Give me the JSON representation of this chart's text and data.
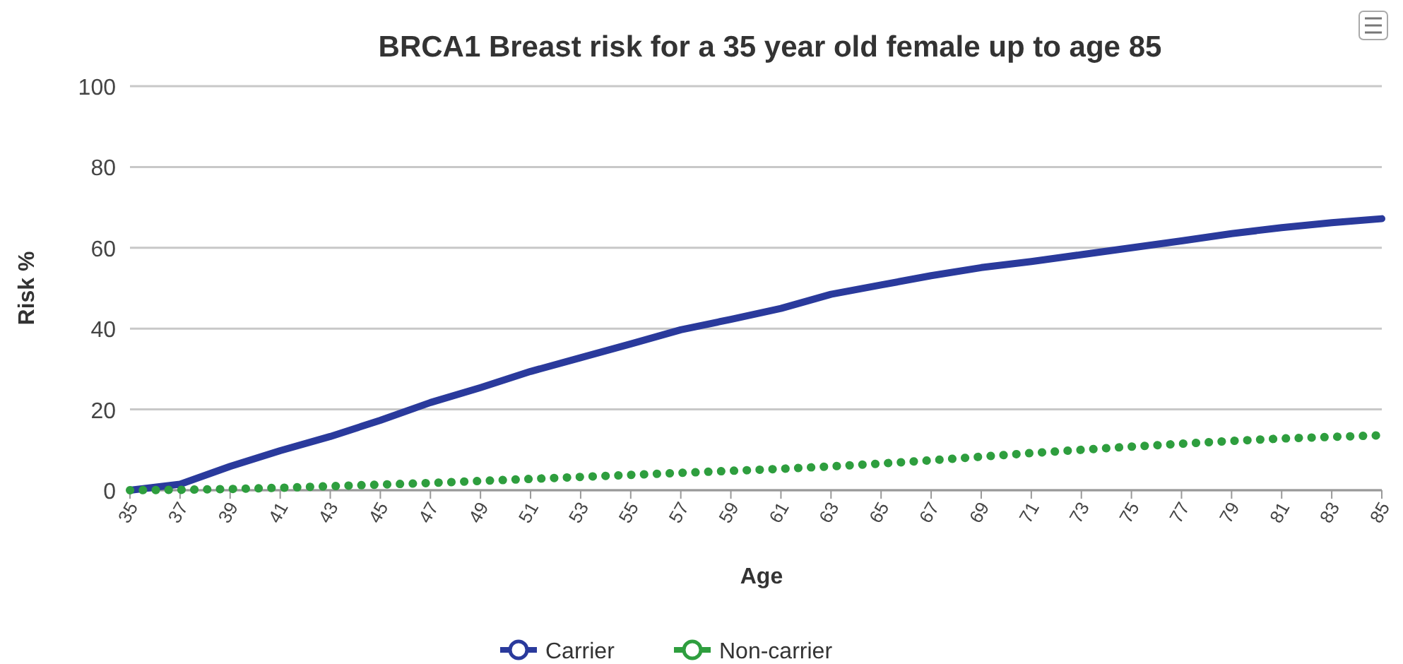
{
  "chart_data": {
    "type": "line",
    "title": "BRCA1 Breast risk for a 35 year old female up to age 85",
    "xlabel": "Age",
    "ylabel": "Risk %",
    "x": [
      35,
      37,
      39,
      41,
      43,
      45,
      47,
      49,
      51,
      53,
      55,
      57,
      59,
      61,
      63,
      65,
      67,
      69,
      71,
      73,
      75,
      77,
      79,
      81,
      83,
      85
    ],
    "xlim": [
      35,
      85
    ],
    "xticks": [
      35,
      37,
      39,
      41,
      43,
      45,
      47,
      49,
      51,
      53,
      55,
      57,
      59,
      61,
      63,
      65,
      67,
      69,
      71,
      73,
      75,
      77,
      79,
      81,
      83,
      85
    ],
    "ylim": [
      0,
      100
    ],
    "yticks": [
      0,
      20,
      40,
      60,
      80,
      100
    ],
    "grid": "y",
    "legend": "bottom",
    "marker": "none",
    "series": [
      {
        "name": "Carrier",
        "color": "#2a3a9c",
        "line_style": "solid",
        "values": [
          0,
          1.5,
          5.9,
          9.8,
          13.3,
          17.3,
          21.7,
          25.4,
          29.4,
          32.8,
          36.2,
          39.7,
          42.3,
          45,
          48.5,
          50.8,
          53.1,
          55.1,
          56.6,
          58.3,
          60,
          61.7,
          63.5,
          65,
          66.2,
          67.2
        ]
      },
      {
        "name": "Non-carrier",
        "color": "#2e9e3e",
        "line_style": "dotted",
        "values": [
          0,
          0.1,
          0.3,
          0.6,
          1.0,
          1.4,
          1.8,
          2.3,
          2.8,
          3.3,
          3.8,
          4.3,
          4.8,
          5.3,
          5.9,
          6.6,
          7.4,
          8.3,
          9.2,
          10.0,
          10.8,
          11.5,
          12.2,
          12.8,
          13.2,
          13.6
        ]
      }
    ]
  }
}
